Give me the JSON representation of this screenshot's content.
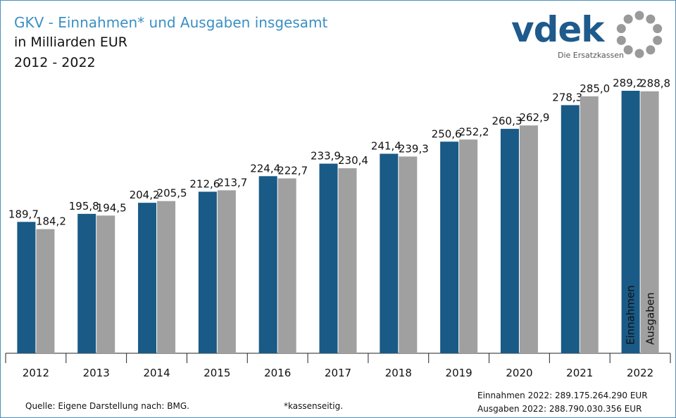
{
  "title": "GKV - Einnahmen* und Ausgaben insgesamt",
  "subtitle": "in Milliarden EUR",
  "period": "2012 - 2022",
  "logo": {
    "text": "vdek",
    "tagline": "Die Ersatzkassen",
    "color": "#1e5a8c",
    "ring_color": "#9a9a9a"
  },
  "footer": {
    "source": "Quelle: Eigene Darstellung nach: BMG.",
    "footnote": "*kassenseitig.",
    "einnahmen_2022": "Einnahmen 2022: 289.175.264.290  EUR",
    "ausgaben_2022": "Ausgaben 2022: 288.790.030.356  EUR"
  },
  "colors": {
    "einnahmen": "#195a86",
    "ausgaben": "#a0a0a0",
    "title": "#3a8fc4",
    "frame": "#4a8fc0"
  },
  "chart_data": {
    "type": "bar",
    "categories": [
      "2012",
      "2013",
      "2014",
      "2015",
      "2016",
      "2017",
      "2018",
      "2019",
      "2020",
      "2021",
      "2022"
    ],
    "series": [
      {
        "name": "Einnahmen",
        "values": [
          189.7,
          195.8,
          204.2,
          212.6,
          224.4,
          233.9,
          241.4,
          250.6,
          260.3,
          278.3,
          289.2
        ],
        "labels": [
          "189,7",
          "195,8",
          "204,2",
          "212,6",
          "224,4",
          "233,9",
          "241,4",
          "250,6",
          "260,3",
          "278,3",
          "289,2"
        ]
      },
      {
        "name": "Ausgaben",
        "values": [
          184.2,
          194.5,
          205.5,
          213.7,
          222.7,
          230.4,
          239.3,
          252.2,
          262.9,
          285.0,
          288.8
        ],
        "labels": [
          "184,2",
          "194,5",
          "205,5",
          "213,7",
          "222,7",
          "230,4",
          "239,3",
          "252,2",
          "262,9",
          "285,0",
          "288,8"
        ]
      }
    ],
    "ylim": [
      90,
      289.2
    ],
    "grid": false,
    "legend": "inside-last-bars"
  }
}
